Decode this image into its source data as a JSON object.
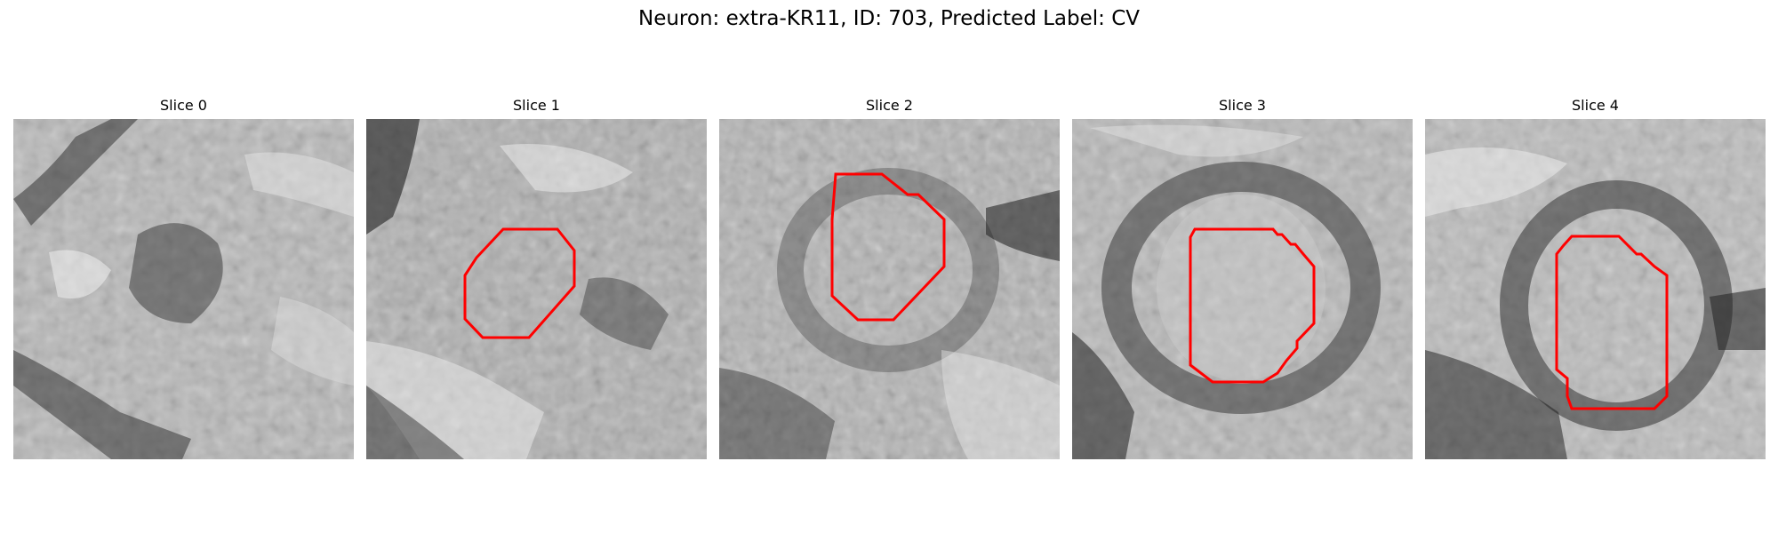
{
  "figure": {
    "title": "Neuron: extra-KR11, ID: 703, Predicted Label: CV"
  },
  "panels": [
    {
      "title": "Slice 0",
      "has_contour": false
    },
    {
      "title": "Slice 1",
      "has_contour": true
    },
    {
      "title": "Slice 2",
      "has_contour": true
    },
    {
      "title": "Slice 3",
      "has_contour": true
    },
    {
      "title": "Slice 4",
      "has_contour": true
    }
  ],
  "colors": {
    "contour": "#ff0000",
    "background": "#ffffff"
  }
}
